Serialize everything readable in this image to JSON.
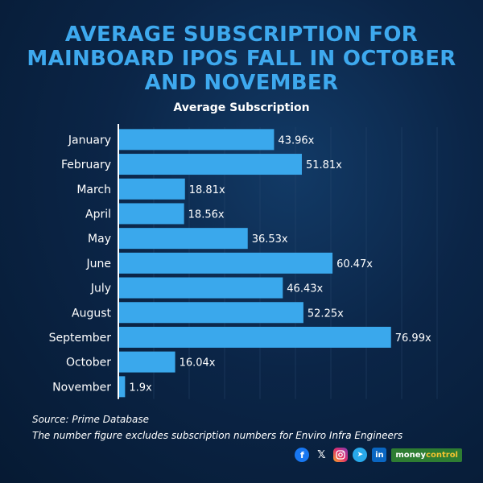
{
  "title_lines": [
    "AVERAGE SUBSCRIPTION FOR",
    "MAINBOARD IPOS FALL IN OCTOBER",
    "AND NOVEMBER"
  ],
  "colors": {
    "title": "#3ea9ee",
    "bar": "#3aa8ec",
    "background": "#0b2547"
  },
  "chart_data": {
    "type": "bar",
    "orientation": "horizontal",
    "title": "Average Subscription",
    "categories": [
      "January",
      "February",
      "March",
      "April",
      "May",
      "June",
      "July",
      "August",
      "September",
      "October",
      "November"
    ],
    "values": [
      43.96,
      51.81,
      18.81,
      18.56,
      36.53,
      60.47,
      46.43,
      52.25,
      76.99,
      16.04,
      1.9
    ],
    "data_labels": [
      "43.96x",
      "51.81x",
      "18.81x",
      "18.56x",
      "36.53x",
      "60.47x",
      "46.43x",
      "52.25x",
      "76.99x",
      "16.04x",
      "1.9x"
    ],
    "xlim": [
      0,
      100
    ],
    "grid": true
  },
  "notes": {
    "source": "Source: Prime Database",
    "footnote": "The number figure excludes subscription numbers for Enviro Infra Engineers"
  },
  "footer": {
    "icons": [
      "facebook-icon",
      "x-icon",
      "instagram-icon",
      "telegram-icon",
      "linkedin-icon"
    ],
    "icon_glyphs": {
      "facebook": "f",
      "x": "𝕏",
      "telegram": "➤",
      "linkedin": "in"
    },
    "brand_part1": "money",
    "brand_part2": "control"
  }
}
